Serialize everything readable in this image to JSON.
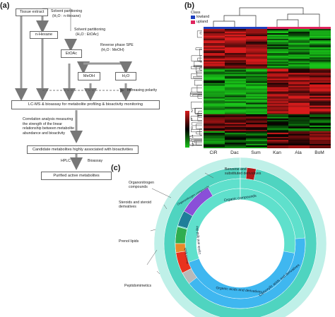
{
  "panels": {
    "a": "(a)",
    "b": "(b)",
    "c": "(c)"
  },
  "flow": {
    "tissue_extract": "Tissue extract",
    "solvent1_title": "Solvent partitioning",
    "solvent1_sub": "(H₂O : n-Hexane)",
    "nhexane": "n-Hexane",
    "solvent2_title": "Solvent partitioning",
    "solvent2_sub": "(H₂O : EtOAc)",
    "etoac": "EtOAc",
    "spe_title": "Reverse phase SPE",
    "spe_sub": "(H₂O : MeOH)",
    "meoh": "MeOH",
    "h2o": "H₂O",
    "polarity": "Increasing polarity",
    "lcms": "LC-MS & bioassay for metabolite profiling & bioactivity monitoring",
    "correlation": "Correlation analysis measuring\nthe strength of the linear\nrelationship between metabolite\nabundance and bioactivity",
    "candidate": "Candidate metabolites highly associated with bioactivities",
    "hplc": "HPLC",
    "bioassay": "Bioassay",
    "purified": "Purified active metabolites"
  },
  "heatmap": {
    "legend_title": "Class",
    "classes": [
      {
        "name": "lowland",
        "color": "#1f3fbf"
      },
      {
        "name": "upland",
        "color": "#e0245e"
      }
    ],
    "columns": [
      "CiR",
      "Dac",
      "Sum",
      "Kan",
      "Ala",
      "BoM"
    ],
    "column_class": [
      "lowland",
      "lowland",
      "lowland",
      "upland",
      "upland",
      "upland"
    ],
    "scale_ticks": [
      "2",
      "1",
      "0",
      "−1",
      "−2"
    ],
    "colors": {
      "high": "#d81b1b",
      "mid": "#000000",
      "low": "#19c419"
    }
  },
  "sunburst": {
    "labels": {
      "benzene": "Benzene and\nsubstituted derivatives",
      "organonitrogen": "Organonitrogen\ncompounds",
      "steroids": "Steroids and steroid\nderivatives",
      "prenol": "Prenol lipids",
      "peptidomimetics": "Peptidomimetics",
      "organic_compounds": "Organic compounds",
      "lipids": "Lipids and lipid-like",
      "organic_acids": "Organic acids and derivatives",
      "carboxylic": "Carboxylic acids and derivatives",
      "organonitrogen_ring": "Organonitrogen compounds",
      "prenol_ring": "Prenol lipids"
    },
    "colors": {
      "base": "#4fd4c0",
      "inner": "#5fe0cc",
      "blue": "#3fb7f0",
      "purple": "#8a4fd8",
      "dark_teal": "#1f7f9a",
      "green": "#2fae4f",
      "orange": "#e8892a",
      "red": "#e8321e",
      "gray": "#b9b9b9",
      "dark_red": "#b01818"
    }
  }
}
